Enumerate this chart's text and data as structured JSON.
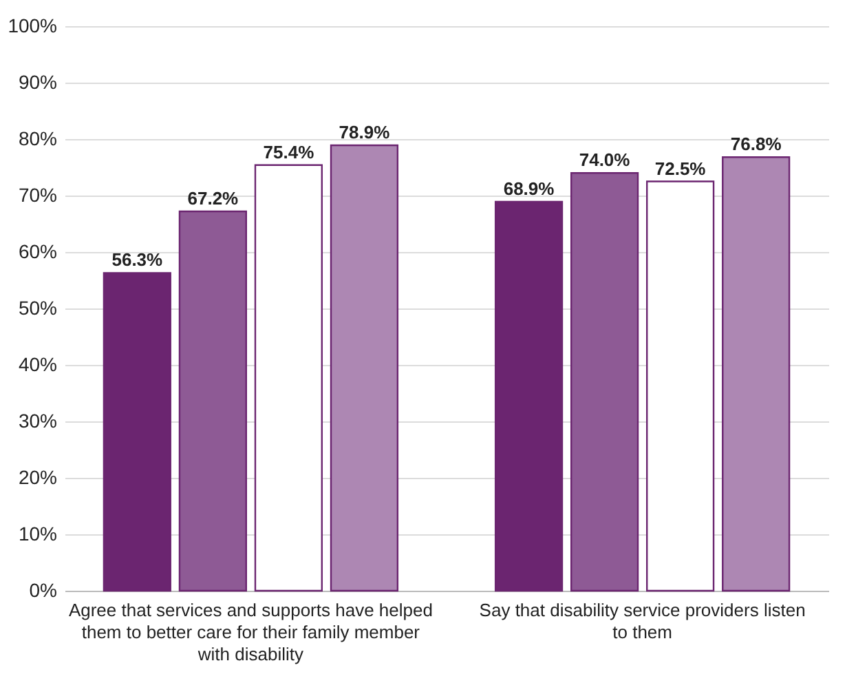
{
  "chart_data": {
    "type": "bar",
    "categories": [
      "Agree that services and supports have helped them to better care for their family member with disability",
      "Say that disability service providers listen to them"
    ],
    "series": [
      {
        "color": "#6b2570",
        "values": [
          56.3,
          68.9
        ],
        "value_labels": [
          "56.3%",
          "68.9%"
        ]
      },
      {
        "color": "#8e5a95",
        "values": [
          67.2,
          74.0
        ],
        "value_labels": [
          "67.2%",
          "74.0%"
        ]
      },
      {
        "color": "#ffffff",
        "values": [
          75.4,
          72.5
        ],
        "value_labels": [
          "75.4%",
          "72.5%"
        ]
      },
      {
        "color": "#ad87b3",
        "values": [
          78.9,
          76.8
        ],
        "value_labels": [
          "78.9%",
          "76.8%"
        ]
      }
    ],
    "ylim": [
      0,
      100
    ],
    "yticks": [
      {
        "value": 0,
        "label": "0%"
      },
      {
        "value": 10,
        "label": "10%"
      },
      {
        "value": 20,
        "label": "20%"
      },
      {
        "value": 30,
        "label": "30%"
      },
      {
        "value": 40,
        "label": "40%"
      },
      {
        "value": 50,
        "label": "50%"
      },
      {
        "value": 60,
        "label": "60%"
      },
      {
        "value": 70,
        "label": "70%"
      },
      {
        "value": 80,
        "label": "80%"
      },
      {
        "value": 90,
        "label": "90%"
      },
      {
        "value": 100,
        "label": "100%"
      }
    ],
    "grid": "y",
    "legend": false
  }
}
